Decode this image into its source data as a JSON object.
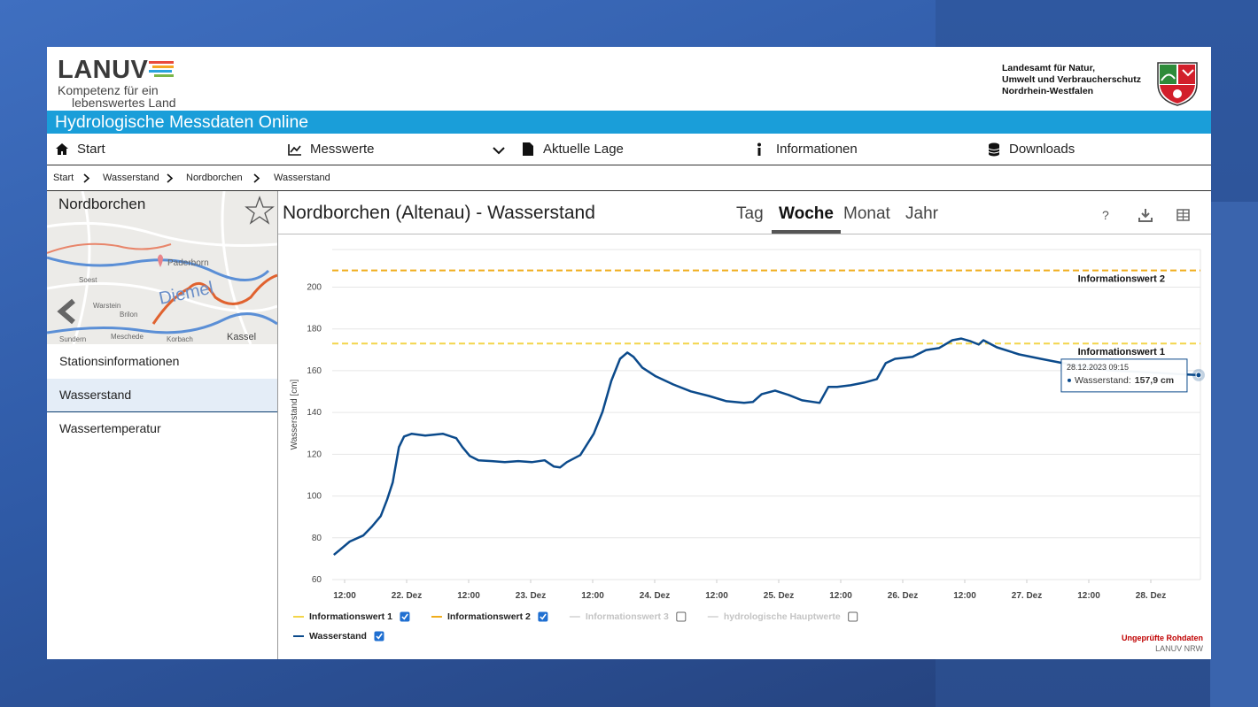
{
  "header": {
    "logo": "LANUV",
    "tagline_1": "Kompetenz für ein",
    "tagline_2": "lebenswertes Land",
    "agency": [
      "Landesamt für Natur,",
      "Umwelt und Verbraucherschutz",
      "Nordrhein-Westfalen"
    ]
  },
  "banner": "Hydrologische Messdaten Online",
  "nav": [
    "Start",
    "Messwerte",
    "Aktuelle Lage",
    "Informationen",
    "Downloads"
  ],
  "breadcrumb": [
    "Start",
    "Wasserstand",
    "Nordborchen",
    "Wasserstand"
  ],
  "sidebar": {
    "map_title": "Nordborchen",
    "map_labels": [
      "Paderborn",
      "Diemel",
      "Soest",
      "Warstein",
      "Brilon",
      "Meschede",
      "Sundern",
      "Korbach",
      "Kassel"
    ],
    "menu": [
      "Stationsinformationen",
      "Wasserstand",
      "Wassertemperatur"
    ],
    "selected": 1
  },
  "page_title": "Nordborchen (Altenau) - Wasserstand",
  "tabs": [
    "Tag",
    "Woche",
    "Monat",
    "Jahr"
  ],
  "active_tab": 1,
  "help_icon": "?",
  "chart_data": {
    "type": "line",
    "y_label": "Wasserstand [cm]",
    "x": [
      9.9,
      13.0,
      15.6,
      17.3,
      19.0,
      20.2,
      21.3,
      22.5,
      23.5,
      25.0,
      27.6,
      31.0,
      33.6,
      34.8,
      36.2,
      37.9,
      40.5,
      43.0,
      45.6,
      48.2,
      50.7,
      52.5,
      53.7,
      55.0,
      57.6,
      60.2,
      61.9,
      63.6,
      65.3,
      66.7,
      67.9,
      69.6,
      72.2,
      75.6,
      79.0,
      82.5,
      85.9,
      89.3,
      91.0,
      92.7,
      95.3,
      97.9,
      100.5,
      103.9,
      105.6,
      107.3,
      109.9,
      112.5,
      115.0,
      116.7,
      118.5,
      121.9,
      124.5,
      127.0,
      129.6,
      131.3,
      133.0,
      134.7,
      135.6,
      138.2,
      142.5,
      146.7,
      151.0,
      159.6,
      168.2,
      175.0,
      177.25
    ],
    "series": [
      {
        "name": "Wasserstand",
        "color": "#0b4a8b",
        "checked": true,
        "values": [
          71.8,
          78.2,
          81.1,
          85.4,
          90.4,
          98.1,
          106.5,
          123.4,
          128.5,
          129.8,
          128.9,
          129.8,
          127.7,
          123.4,
          119.2,
          117.1,
          116.7,
          116.2,
          116.7,
          116.2,
          117.1,
          114.1,
          113.7,
          116.2,
          119.6,
          129.8,
          140.3,
          155.1,
          165.7,
          168.7,
          166.6,
          161.5,
          157.3,
          153.4,
          150.1,
          147.9,
          145.4,
          144.6,
          145.0,
          148.8,
          150.5,
          148.4,
          145.8,
          144.6,
          152.2,
          152.2,
          153.0,
          154.3,
          156.0,
          163.6,
          165.7,
          166.6,
          169.9,
          170.8,
          174.6,
          175.4,
          174.2,
          172.5,
          174.6,
          171.2,
          167.8,
          165.7,
          163.6,
          160.2,
          159.1,
          158.2,
          157.9
        ]
      }
    ],
    "thresholds": [
      {
        "name": "Informationswert 1",
        "value": 173,
        "color": "#f3d54a",
        "checked": true
      },
      {
        "name": "Informationswert 2",
        "value": 208,
        "color": "#f0ad1c",
        "checked": true
      },
      {
        "name": "Informationswert 3",
        "color": "#cccccc",
        "checked": false
      },
      {
        "name": "hydrologische Hauptwerte",
        "color": "#cccccc",
        "checked": false
      }
    ],
    "xlim": [
      9.6,
      177.6
    ],
    "ylim": [
      60,
      218
    ],
    "xticks": [
      {
        "value": 12,
        "label": "12:00"
      },
      {
        "value": 24,
        "label": "22. Dez"
      },
      {
        "value": 36,
        "label": "12:00"
      },
      {
        "value": 48,
        "label": "23. Dez"
      },
      {
        "value": 60,
        "label": "12:00"
      },
      {
        "value": 72,
        "label": "24. Dez"
      },
      {
        "value": 84,
        "label": "12:00"
      },
      {
        "value": 96,
        "label": "25. Dez"
      },
      {
        "value": 108,
        "label": "12:00"
      },
      {
        "value": 120,
        "label": "26. Dez"
      },
      {
        "value": 132,
        "label": "12:00"
      },
      {
        "value": 144,
        "label": "27. Dez"
      },
      {
        "value": 156,
        "label": "12:00"
      },
      {
        "value": 168,
        "label": "28. Dez"
      }
    ],
    "yticks": [
      60,
      80,
      100,
      120,
      140,
      160,
      180,
      200
    ],
    "grid": true,
    "tooltip": {
      "x_label": "28.12.2023 09:15",
      "label": "Wasserstand:",
      "value_label": "157,9 cm"
    }
  },
  "footer": {
    "note": "Ungeprüfte Rohdaten",
    "source": "LANUV NRW"
  }
}
